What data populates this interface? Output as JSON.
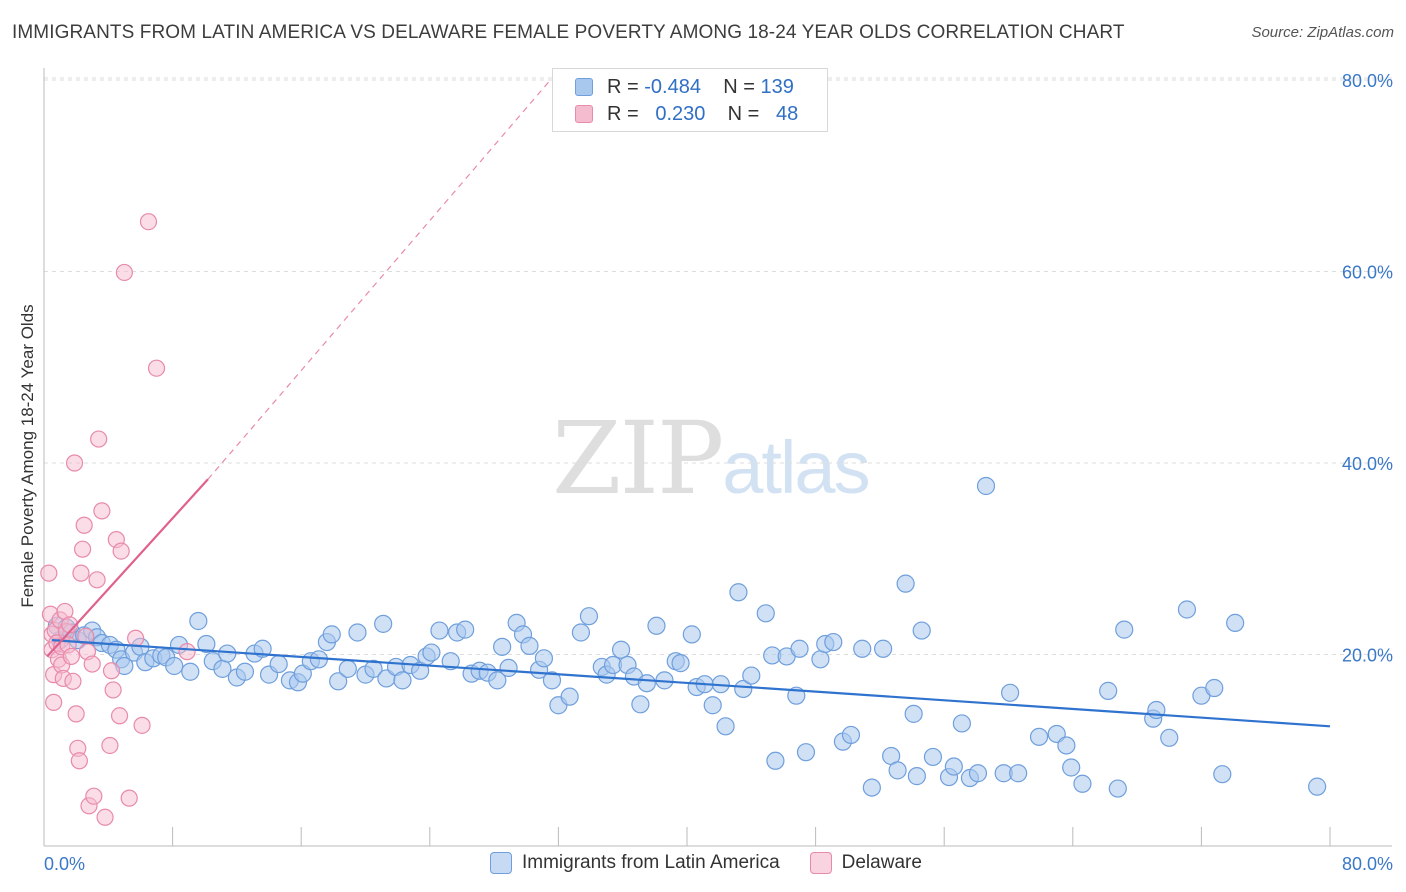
{
  "header": {
    "title": "IMMIGRANTS FROM LATIN AMERICA VS DELAWARE FEMALE POVERTY AMONG 18-24 YEAR OLDS CORRELATION CHART",
    "source": "Source: ZipAtlas.com"
  },
  "watermark": {
    "zip": "ZIP",
    "atlas": "atlas"
  },
  "legend": {
    "rows": [
      {
        "r_label": "R =",
        "r_value": "-0.484",
        "n_label": "N =",
        "n_value": "139"
      },
      {
        "r_label": "R =",
        "r_value": "0.230",
        "n_label": "N =",
        "n_value": "48"
      }
    ],
    "bottom": [
      "Immigrants from Latin America",
      "Delaware"
    ]
  },
  "colors": {
    "blue_fill": "#a9c8ee",
    "blue_stroke": "#6f9fdc",
    "blue_line": "#2f73cf",
    "pink_fill": "#f5bccf",
    "pink_stroke": "#e88aa9",
    "pink_line": "#e0618d",
    "axis_label": "#3a78c8",
    "grid": "#dddddd"
  },
  "chart_data": {
    "type": "scatter",
    "title": "IMMIGRANTS FROM LATIN AMERICA VS DELAWARE FEMALE POVERTY AMONG 18-24 YEAR OLDS CORRELATION CHART",
    "xlabel": "",
    "ylabel": "Female Poverty Among 18-24 Year Olds",
    "xlim": [
      0,
      80
    ],
    "ylim": [
      0,
      80
    ],
    "x_tick_labels": [
      "0.0%",
      "80.0%"
    ],
    "y_tick_labels": [
      "20.0%",
      "40.0%",
      "60.0%",
      "80.0%"
    ],
    "y_ticks": [
      20,
      40,
      60,
      80
    ],
    "grid": true,
    "legend_position": "top-center",
    "series": [
      {
        "name": "Immigrants from Latin America",
        "R": -0.484,
        "N": 139,
        "trend": {
          "x": [
            0.5,
            80
          ],
          "y": [
            21.5,
            12.5
          ]
        },
        "points": [
          [
            0.8,
            23
          ],
          [
            1,
            21.5
          ],
          [
            1.4,
            22.8
          ],
          [
            1.7,
            22.3
          ],
          [
            2.1,
            21.5
          ],
          [
            2.5,
            22
          ],
          [
            3,
            22.5
          ],
          [
            3.3,
            21.8
          ],
          [
            3.6,
            21.2
          ],
          [
            4.1,
            21
          ],
          [
            4.5,
            20.5
          ],
          [
            4.8,
            19.5
          ],
          [
            5,
            18.8
          ],
          [
            5.6,
            20.2
          ],
          [
            6,
            20.8
          ],
          [
            6.3,
            19.2
          ],
          [
            6.8,
            19.6
          ],
          [
            7.3,
            19.9
          ],
          [
            7.6,
            19.7
          ],
          [
            8.1,
            18.8
          ],
          [
            8.4,
            21
          ],
          [
            9.1,
            18.2
          ],
          [
            9.6,
            23.5
          ],
          [
            10.1,
            21.1
          ],
          [
            10.5,
            19.3
          ],
          [
            11.1,
            18.5
          ],
          [
            11.4,
            20.1
          ],
          [
            12,
            17.6
          ],
          [
            12.5,
            18.2
          ],
          [
            13.1,
            20.1
          ],
          [
            13.6,
            20.6
          ],
          [
            14,
            17.9
          ],
          [
            14.6,
            19
          ],
          [
            15.3,
            17.3
          ],
          [
            15.8,
            17.1
          ],
          [
            16.1,
            18
          ],
          [
            16.6,
            19.3
          ],
          [
            17.1,
            19.5
          ],
          [
            17.6,
            21.3
          ],
          [
            17.9,
            22.1
          ],
          [
            18.3,
            17.2
          ],
          [
            18.9,
            18.5
          ],
          [
            19.5,
            22.3
          ],
          [
            20,
            17.9
          ],
          [
            20.5,
            18.5
          ],
          [
            21.1,
            23.2
          ],
          [
            21.3,
            17.5
          ],
          [
            21.9,
            18.7
          ],
          [
            22.3,
            17.3
          ],
          [
            22.8,
            18.9
          ],
          [
            23.4,
            18.3
          ],
          [
            23.8,
            19.8
          ],
          [
            24.1,
            20.2
          ],
          [
            24.6,
            22.5
          ],
          [
            25.3,
            19.3
          ],
          [
            25.7,
            22.3
          ],
          [
            26.2,
            22.6
          ],
          [
            26.6,
            18
          ],
          [
            27.1,
            18.3
          ],
          [
            27.6,
            18.1
          ],
          [
            28.2,
            17.3
          ],
          [
            28.5,
            20.8
          ],
          [
            28.9,
            18.6
          ],
          [
            29.4,
            23.3
          ],
          [
            29.8,
            22.1
          ],
          [
            30.2,
            20.9
          ],
          [
            30.8,
            18.4
          ],
          [
            31.1,
            19.6
          ],
          [
            31.6,
            17.3
          ],
          [
            32,
            14.7
          ],
          [
            32.7,
            15.6
          ],
          [
            33.4,
            22.3
          ],
          [
            33.9,
            24
          ],
          [
            34.7,
            18.7
          ],
          [
            35,
            17.9
          ],
          [
            35.4,
            18.9
          ],
          [
            35.9,
            20.5
          ],
          [
            36.3,
            18.9
          ],
          [
            36.7,
            17.7
          ],
          [
            37.1,
            14.8
          ],
          [
            37.5,
            17
          ],
          [
            38.1,
            23
          ],
          [
            38.6,
            17.3
          ],
          [
            39.3,
            19.3
          ],
          [
            39.6,
            19.1
          ],
          [
            40.3,
            22.1
          ],
          [
            40.6,
            16.6
          ],
          [
            41.1,
            16.9
          ],
          [
            41.6,
            14.7
          ],
          [
            42.1,
            16.9
          ],
          [
            42.4,
            12.5
          ],
          [
            43.2,
            26.5
          ],
          [
            43.5,
            16.4
          ],
          [
            44,
            17.8
          ],
          [
            44.9,
            24.3
          ],
          [
            45.3,
            19.9
          ],
          [
            45.5,
            8.9
          ],
          [
            46.2,
            19.8
          ],
          [
            46.8,
            15.7
          ],
          [
            47,
            20.6
          ],
          [
            47.4,
            9.8
          ],
          [
            48.3,
            19.5
          ],
          [
            48.6,
            21.1
          ],
          [
            49.1,
            21.3
          ],
          [
            49.7,
            10.9
          ],
          [
            50.2,
            11.6
          ],
          [
            50.9,
            20.6
          ],
          [
            51.5,
            6.1
          ],
          [
            52.2,
            20.6
          ],
          [
            52.7,
            9.4
          ],
          [
            53.1,
            7.9
          ],
          [
            53.6,
            27.4
          ],
          [
            54.1,
            13.8
          ],
          [
            54.3,
            7.3
          ],
          [
            54.6,
            22.5
          ],
          [
            55.3,
            9.3
          ],
          [
            56.3,
            7.2
          ],
          [
            56.6,
            8.3
          ],
          [
            57.1,
            12.8
          ],
          [
            57.6,
            7.1
          ],
          [
            58.1,
            7.6
          ],
          [
            58.6,
            37.6
          ],
          [
            59.7,
            7.6
          ],
          [
            60.1,
            16
          ],
          [
            60.6,
            7.6
          ],
          [
            61.9,
            11.4
          ],
          [
            63,
            11.7
          ],
          [
            63.6,
            10.5
          ],
          [
            63.9,
            8.2
          ],
          [
            64.6,
            6.5
          ],
          [
            66.2,
            16.2
          ],
          [
            66.8,
            6
          ],
          [
            67.2,
            22.6
          ],
          [
            69,
            13.3
          ],
          [
            69.2,
            14.2
          ],
          [
            70,
            11.3
          ],
          [
            71.1,
            24.7
          ],
          [
            72,
            15.7
          ],
          [
            72.8,
            16.5
          ],
          [
            73.3,
            7.5
          ],
          [
            74.1,
            23.3
          ],
          [
            79.2,
            6.2
          ]
        ]
      },
      {
        "name": "Delaware",
        "R": 0.23,
        "N": 48,
        "trend": {
          "x": [
            0.2,
            10.2
          ],
          "y": [
            19.8,
            38.3
          ]
        },
        "trend_extension": {
          "x": [
            10.2,
            31.5
          ],
          "y": [
            38.3,
            80
          ]
        },
        "points": [
          [
            0.3,
            28.5
          ],
          [
            0.4,
            24.2
          ],
          [
            0.5,
            22.1
          ],
          [
            0.5,
            20.5
          ],
          [
            0.6,
            17.9
          ],
          [
            0.6,
            15
          ],
          [
            0.7,
            22.5
          ],
          [
            0.8,
            21.2
          ],
          [
            0.9,
            19.5
          ],
          [
            1,
            23.6
          ],
          [
            1.1,
            20.8
          ],
          [
            1.1,
            18.9
          ],
          [
            1.2,
            17.5
          ],
          [
            1.3,
            24.5
          ],
          [
            1.4,
            22.4
          ],
          [
            1.5,
            21
          ],
          [
            1.6,
            23.1
          ],
          [
            1.7,
            19.8
          ],
          [
            1.8,
            17.2
          ],
          [
            1.9,
            40
          ],
          [
            2,
            13.8
          ],
          [
            2.1,
            10.2
          ],
          [
            2.2,
            8.9
          ],
          [
            2.3,
            28.5
          ],
          [
            2.4,
            31
          ],
          [
            2.5,
            33.5
          ],
          [
            2.6,
            21.9
          ],
          [
            2.7,
            20.3
          ],
          [
            2.8,
            4.2
          ],
          [
            3,
            19
          ],
          [
            3.1,
            5.2
          ],
          [
            3.3,
            27.8
          ],
          [
            3.4,
            42.5
          ],
          [
            3.6,
            35
          ],
          [
            3.8,
            3
          ],
          [
            4.1,
            10.5
          ],
          [
            4.2,
            18.3
          ],
          [
            4.3,
            16.3
          ],
          [
            4.5,
            32
          ],
          [
            4.7,
            13.6
          ],
          [
            4.8,
            30.8
          ],
          [
            5,
            59.9
          ],
          [
            5.3,
            5
          ],
          [
            5.7,
            21.7
          ],
          [
            6.1,
            12.6
          ],
          [
            6.5,
            65.2
          ],
          [
            7,
            49.9
          ],
          [
            8.9,
            20.3
          ]
        ]
      }
    ]
  }
}
